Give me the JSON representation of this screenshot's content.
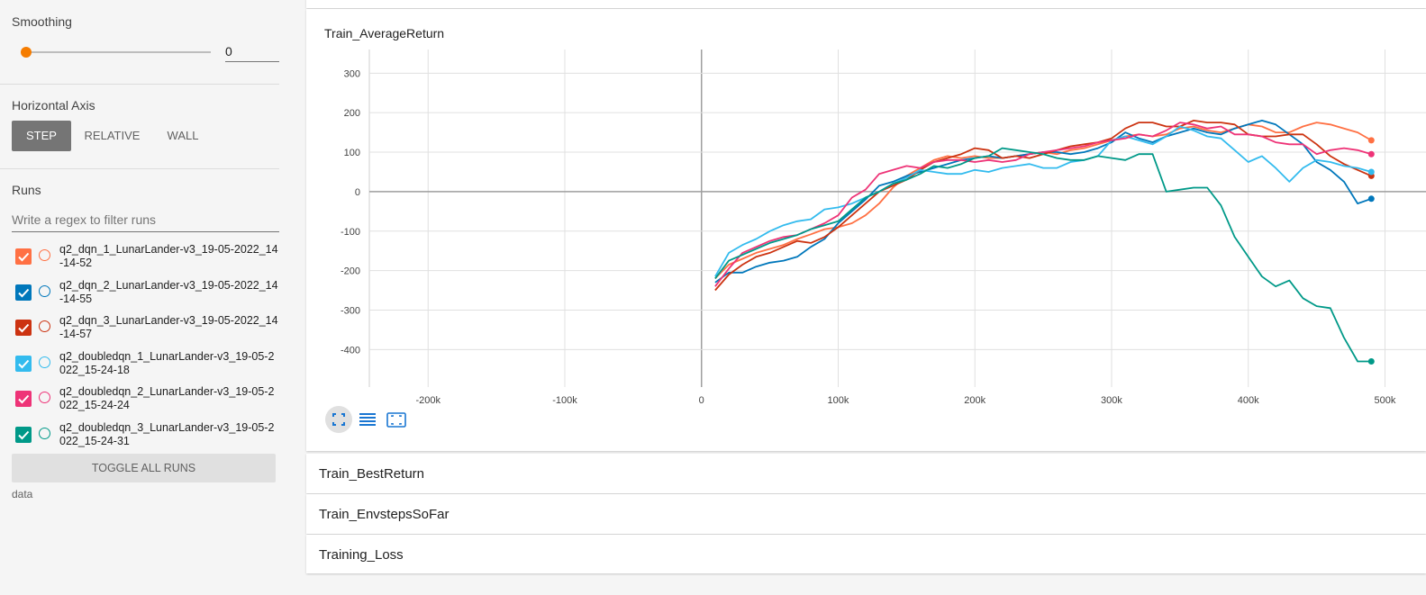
{
  "sidebar": {
    "smoothing": {
      "title": "Smoothing",
      "value": "0"
    },
    "horizontal_axis": {
      "title": "Horizontal Axis",
      "options": [
        "STEP",
        "RELATIVE",
        "WALL"
      ],
      "selected": "STEP"
    },
    "runs": {
      "title": "Runs",
      "filter_placeholder": "Write a regex to filter runs",
      "items": [
        {
          "label": "q2_dqn_1_LunarLander-v3_19-05-2022_14-14-52",
          "color": "#ff7043",
          "checked": true
        },
        {
          "label": "q2_dqn_2_LunarLander-v3_19-05-2022_14-14-55",
          "color": "#0077bb",
          "checked": true
        },
        {
          "label": "q2_dqn_3_LunarLander-v3_19-05-2022_14-14-57",
          "color": "#cc3311",
          "checked": true
        },
        {
          "label": "q2_doubledqn_1_LunarLander-v3_19-05-2022_15-24-18",
          "color": "#33bbee",
          "checked": true
        },
        {
          "label": "q2_doubledqn_2_LunarLander-v3_19-05-2022_15-24-24",
          "color": "#ee3377",
          "checked": true
        },
        {
          "label": "q2_doubledqn_3_LunarLander-v3_19-05-2022_15-24-31",
          "color": "#009988",
          "checked": true
        }
      ],
      "toggle_label": "TOGGLE ALL RUNS",
      "data_dir": "data"
    }
  },
  "cards": [
    {
      "title": "Train_AverageReturn",
      "expanded": true
    },
    {
      "title": "Train_BestReturn",
      "expanded": false
    },
    {
      "title": "Train_EnvstepsSoFar",
      "expanded": false
    },
    {
      "title": "Training_Loss",
      "expanded": false
    }
  ],
  "chart_data": {
    "type": "line",
    "title": "Train_AverageReturn",
    "xlabel": "",
    "ylabel": "",
    "xlim": [
      -243000,
      530000
    ],
    "ylim": [
      -495,
      360
    ],
    "x_ticks": [
      -200000,
      -100000,
      0,
      100000,
      200000,
      300000,
      400000,
      500000
    ],
    "x_tick_labels": [
      "-200k",
      "-100k",
      "0",
      "100k",
      "200k",
      "300k",
      "400k",
      "500k"
    ],
    "y_ticks": [
      300,
      200,
      100,
      0,
      -100,
      -200,
      -300,
      -400
    ],
    "y_tick_labels": [
      "300",
      "200",
      "100",
      "0",
      "-100",
      "-200",
      "-300",
      "-400"
    ],
    "grid": true,
    "series": [
      {
        "name": "q2_dqn_1_LunarLander-v3_19-05-2022_14-14-52",
        "color": "#ff7043",
        "x": [
          10000,
          20000,
          30000,
          40000,
          50000,
          60000,
          70000,
          80000,
          90000,
          100000,
          110000,
          120000,
          130000,
          140000,
          150000,
          160000,
          170000,
          180000,
          190000,
          200000,
          210000,
          220000,
          230000,
          240000,
          250000,
          260000,
          270000,
          280000,
          290000,
          300000,
          310000,
          320000,
          330000,
          340000,
          350000,
          360000,
          370000,
          380000,
          390000,
          400000,
          410000,
          420000,
          430000,
          440000,
          450000,
          460000,
          470000,
          480000,
          490000
        ],
        "y": [
          -220,
          -185,
          -170,
          -155,
          -145,
          -135,
          -120,
          -108,
          -95,
          -90,
          -80,
          -60,
          -30,
          10,
          40,
          60,
          80,
          90,
          85,
          90,
          85,
          85,
          90,
          95,
          100,
          95,
          105,
          110,
          120,
          130,
          140,
          145,
          140,
          145,
          160,
          165,
          155,
          150,
          160,
          170,
          165,
          150,
          150,
          165,
          175,
          170,
          160,
          150,
          130
        ]
      },
      {
        "name": "q2_dqn_2_LunarLander-v3_19-05-2022_14-14-55",
        "color": "#0077bb",
        "x": [
          10000,
          20000,
          30000,
          40000,
          50000,
          60000,
          70000,
          80000,
          90000,
          100000,
          110000,
          120000,
          130000,
          140000,
          150000,
          160000,
          170000,
          180000,
          190000,
          200000,
          210000,
          220000,
          230000,
          240000,
          250000,
          260000,
          270000,
          280000,
          290000,
          300000,
          310000,
          320000,
          330000,
          340000,
          350000,
          360000,
          370000,
          380000,
          390000,
          400000,
          410000,
          420000,
          430000,
          440000,
          450000,
          460000,
          470000,
          480000,
          490000
        ],
        "y": [
          -230,
          -205,
          -205,
          -190,
          -180,
          -175,
          -165,
          -140,
          -120,
          -80,
          -50,
          -20,
          15,
          25,
          40,
          50,
          60,
          70,
          80,
          85,
          90,
          85,
          90,
          95,
          100,
          100,
          95,
          100,
          110,
          125,
          150,
          135,
          125,
          140,
          150,
          160,
          150,
          145,
          160,
          170,
          180,
          170,
          145,
          120,
          75,
          55,
          25,
          -30,
          -18
        ]
      },
      {
        "name": "q2_dqn_3_LunarLander-v3_19-05-2022_14-14-57",
        "color": "#cc3311",
        "x": [
          10000,
          20000,
          30000,
          40000,
          50000,
          60000,
          70000,
          80000,
          90000,
          100000,
          110000,
          120000,
          130000,
          140000,
          150000,
          160000,
          170000,
          180000,
          190000,
          200000,
          210000,
          220000,
          230000,
          240000,
          250000,
          260000,
          270000,
          280000,
          290000,
          300000,
          310000,
          320000,
          330000,
          340000,
          350000,
          360000,
          370000,
          380000,
          390000,
          400000,
          410000,
          420000,
          430000,
          440000,
          450000,
          460000,
          470000,
          480000,
          490000
        ],
        "y": [
          -250,
          -210,
          -185,
          -165,
          -155,
          -140,
          -125,
          -130,
          -115,
          -90,
          -60,
          -30,
          0,
          15,
          30,
          55,
          75,
          85,
          95,
          110,
          105,
          85,
          90,
          85,
          95,
          105,
          115,
          120,
          125,
          135,
          160,
          175,
          175,
          165,
          165,
          180,
          175,
          175,
          170,
          145,
          140,
          140,
          145,
          145,
          120,
          90,
          70,
          55,
          40
        ]
      },
      {
        "name": "q2_doubledqn_1_LunarLander-v3_19-05-2022_15-24-18",
        "color": "#33bbee",
        "x": [
          10000,
          20000,
          30000,
          40000,
          50000,
          60000,
          70000,
          80000,
          90000,
          100000,
          110000,
          120000,
          130000,
          140000,
          150000,
          160000,
          170000,
          180000,
          190000,
          200000,
          210000,
          220000,
          230000,
          240000,
          250000,
          260000,
          270000,
          280000,
          290000,
          300000,
          310000,
          320000,
          330000,
          340000,
          350000,
          360000,
          370000,
          380000,
          390000,
          400000,
          410000,
          420000,
          430000,
          440000,
          450000,
          460000,
          470000,
          480000,
          490000
        ],
        "y": [
          -215,
          -155,
          -135,
          -120,
          -100,
          -85,
          -75,
          -70,
          -45,
          -40,
          -30,
          -15,
          0,
          20,
          35,
          55,
          50,
          45,
          45,
          55,
          50,
          60,
          65,
          70,
          60,
          60,
          75,
          80,
          90,
          130,
          140,
          130,
          120,
          140,
          165,
          155,
          140,
          135,
          105,
          75,
          90,
          60,
          25,
          60,
          80,
          75,
          65,
          60,
          50
        ]
      },
      {
        "name": "q2_doubledqn_2_LunarLander-v3_19-05-2022_15-24-24",
        "color": "#ee3377",
        "x": [
          10000,
          20000,
          30000,
          40000,
          50000,
          60000,
          70000,
          80000,
          90000,
          100000,
          110000,
          120000,
          130000,
          140000,
          150000,
          160000,
          170000,
          180000,
          190000,
          200000,
          210000,
          220000,
          230000,
          240000,
          250000,
          260000,
          270000,
          280000,
          290000,
          300000,
          310000,
          320000,
          330000,
          340000,
          350000,
          360000,
          370000,
          380000,
          390000,
          400000,
          410000,
          420000,
          430000,
          440000,
          450000,
          460000,
          470000,
          480000,
          490000
        ],
        "y": [
          -240,
          -195,
          -155,
          -140,
          -125,
          -115,
          -110,
          -95,
          -80,
          -60,
          -15,
          5,
          45,
          55,
          65,
          60,
          75,
          80,
          80,
          75,
          80,
          75,
          80,
          95,
          100,
          105,
          110,
          115,
          125,
          130,
          135,
          145,
          140,
          155,
          175,
          170,
          160,
          165,
          145,
          145,
          140,
          125,
          120,
          120,
          95,
          105,
          110,
          105,
          95
        ]
      },
      {
        "name": "q2_doubledqn_3_LunarLander-v3_19-05-2022_15-24-31",
        "color": "#009988",
        "x": [
          10000,
          20000,
          30000,
          40000,
          50000,
          60000,
          70000,
          80000,
          90000,
          100000,
          110000,
          120000,
          130000,
          140000,
          150000,
          160000,
          170000,
          180000,
          190000,
          200000,
          210000,
          220000,
          230000,
          240000,
          250000,
          260000,
          270000,
          280000,
          290000,
          300000,
          310000,
          320000,
          330000,
          340000,
          350000,
          360000,
          370000,
          380000,
          390000,
          400000,
          410000,
          420000,
          430000,
          440000,
          450000,
          460000,
          470000,
          480000,
          490000
        ],
        "y": [
          -220,
          -175,
          -160,
          -145,
          -130,
          -120,
          -110,
          -95,
          -85,
          -75,
          -45,
          -15,
          0,
          20,
          30,
          45,
          65,
          60,
          70,
          85,
          90,
          110,
          105,
          100,
          95,
          85,
          80,
          80,
          90,
          85,
          80,
          95,
          95,
          0,
          5,
          10,
          10,
          -35,
          -115,
          -165,
          -215,
          -240,
          -225,
          -270,
          -290,
          -295,
          -370,
          -430,
          -430
        ]
      }
    ]
  }
}
